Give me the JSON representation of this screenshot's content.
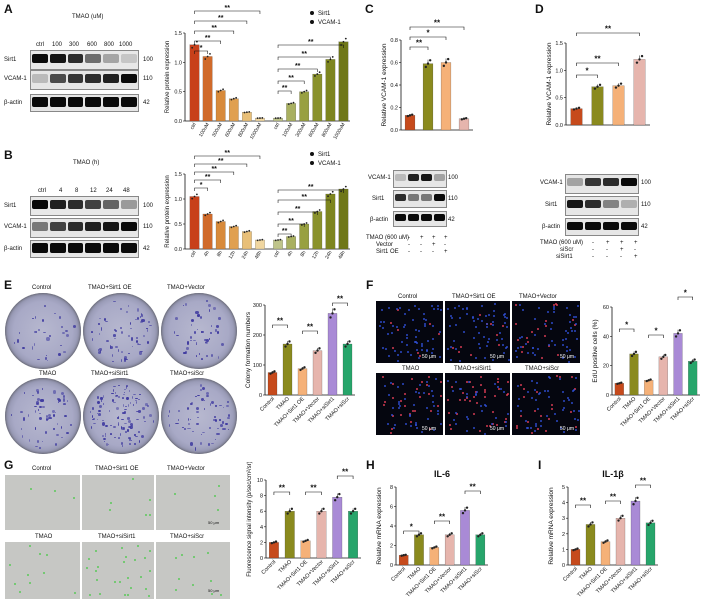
{
  "panels": {
    "A": {
      "label": "A",
      "header": "TMAO (uM)",
      "lanes": [
        "ctrl",
        "100",
        "300",
        "600",
        "800",
        "1000"
      ],
      "rows": [
        {
          "name": "Sirt1",
          "kda": "100"
        },
        {
          "name": "VCAM-1",
          "kda": "110"
        },
        {
          "name": "β-actin",
          "kda": "42"
        }
      ]
    },
    "B": {
      "label": "B",
      "header": "TMAO (h)",
      "lanes": [
        "ctrl",
        "4",
        "8",
        "12",
        "24",
        "48"
      ],
      "rows": [
        {
          "name": "Sirt1",
          "kda": "100"
        },
        {
          "name": "VCAM-1",
          "kda": "110"
        },
        {
          "name": "β-actin",
          "kda": "42"
        }
      ]
    },
    "C": {
      "label": "C",
      "rows": [
        {
          "name": "VCAM-1",
          "kda": "100"
        },
        {
          "name": "Sirt1",
          "kda": "110"
        },
        {
          "name": "β-actin",
          "kda": "42"
        }
      ],
      "conditions": [
        {
          "name": "TMAO (600 uM)",
          "signs": [
            "-",
            "+",
            "+",
            "+"
          ]
        },
        {
          "name": "Vector",
          "signs": [
            "-",
            "-",
            "+",
            "-"
          ]
        },
        {
          "name": "Sirt1  OE",
          "signs": [
            "-",
            "-",
            "-",
            "+"
          ]
        }
      ]
    },
    "D": {
      "label": "D",
      "rows": [
        {
          "name": "VCAM-1",
          "kda": "100"
        },
        {
          "name": "Sirt1",
          "kda": "110"
        },
        {
          "name": "β-actin",
          "kda": "42"
        }
      ],
      "conditions": [
        {
          "name": "TMAO (600 uM)",
          "signs": [
            "-",
            "+",
            "+",
            "+"
          ]
        },
        {
          "name": "siScr",
          "signs": [
            "-",
            "-",
            "+",
            "-"
          ]
        },
        {
          "name": "siSirt1",
          "signs": [
            "-",
            "-",
            "-",
            "+"
          ]
        }
      ]
    },
    "E": {
      "label": "E",
      "image_titles": [
        "Control",
        "TMAO+Sirt1 OE",
        "TMAO+Vector",
        "TMAO",
        "TMAO+siSirt1",
        "TMAO+siScr"
      ]
    },
    "F": {
      "label": "F",
      "image_titles": [
        "Control",
        "TMAO+Sirt1 OE",
        "TMAO+Vector",
        "TMAO",
        "TMAO+siSirt1",
        "TMAO+siScr"
      ],
      "scale": "50 μm"
    },
    "G": {
      "label": "G",
      "image_titles": [
        "Control",
        "TMAO+Sirt1 OE",
        "TMAO+Vector",
        "TMAO",
        "TMAO+siSirt1",
        "TMAO+siScr"
      ],
      "scale": "50 μm"
    },
    "H": {
      "label": "H"
    },
    "I": {
      "label": "I"
    }
  },
  "chart_data": [
    {
      "id": "A-chart",
      "type": "bar",
      "ylabel": "Relative protein expression",
      "ylim": [
        0,
        1.5
      ],
      "yticks": [
        "0.0",
        "0.5",
        "1.0",
        "1.5"
      ],
      "categories": [
        "ctrl",
        "100uM",
        "300uM",
        "600uM",
        "800uM",
        "1000uM"
      ],
      "series": [
        {
          "name": "Sirt1",
          "values": [
            1.3,
            1.1,
            0.52,
            0.38,
            0.15,
            0.05
          ]
        },
        {
          "name": "VCAM-1",
          "values": [
            0.05,
            0.3,
            0.5,
            0.8,
            1.05,
            1.35
          ]
        }
      ],
      "significance": [
        "*",
        "**",
        "**",
        "**",
        "**",
        "**",
        "**",
        "**",
        "**",
        "**"
      ],
      "legend": "top-right"
    },
    {
      "id": "B-chart",
      "type": "bar",
      "ylabel": "Relative protein expression",
      "ylim": [
        0,
        1.5
      ],
      "yticks": [
        "0.0",
        "0.5",
        "1.0",
        "1.5"
      ],
      "categories": [
        "ctrl",
        "4h",
        "8h",
        "12h",
        "24h",
        "48h"
      ],
      "series": [
        {
          "name": "Sirt1",
          "values": [
            1.05,
            0.7,
            0.55,
            0.45,
            0.35,
            0.18
          ]
        },
        {
          "name": "VCAM-1",
          "values": [
            0.18,
            0.25,
            0.5,
            0.75,
            1.1,
            1.2
          ]
        }
      ],
      "significance": [
        "*",
        "**",
        "**",
        "**",
        "**",
        "**",
        "**",
        "**",
        "**",
        "**"
      ],
      "legend": "top-right"
    },
    {
      "id": "C-chart",
      "type": "bar",
      "ylabel": "Relative VCAM-1 expression",
      "ylim": [
        0,
        0.8
      ],
      "yticks": [
        "0.0",
        "0.2",
        "0.4",
        "0.6",
        "0.8"
      ],
      "categories": [
        "",
        "",
        "",
        ""
      ],
      "values": [
        0.13,
        0.59,
        0.6,
        0.1
      ],
      "significance": [
        "**",
        "*",
        "**"
      ]
    },
    {
      "id": "D-chart",
      "type": "bar",
      "ylabel": "Relative VCAM-1 expression",
      "ylim": [
        0,
        1.5
      ],
      "yticks": [
        "0.0",
        "0.5",
        "1.0",
        "1.5"
      ],
      "categories": [
        "",
        "",
        "",
        ""
      ],
      "values": [
        0.3,
        0.7,
        0.72,
        1.2
      ],
      "significance": [
        "*",
        "**",
        "**"
      ]
    },
    {
      "id": "E-chart",
      "type": "bar",
      "ylabel": "Colony formation numbers",
      "ylim": [
        0,
        300
      ],
      "yticks": [
        "0",
        "100",
        "200",
        "300"
      ],
      "categories": [
        "Control",
        "TMAO",
        "TMAO+Sirt1 OE",
        "TMAO+Vector",
        "TMAO+siSirt1",
        "TMAO+siScr"
      ],
      "values": [
        75,
        170,
        88,
        148,
        272,
        170
      ],
      "significance": [
        "**",
        "**",
        "**"
      ]
    },
    {
      "id": "F-chart",
      "type": "bar",
      "ylabel": "EdU positive cells (%)",
      "ylim": [
        0,
        60
      ],
      "yticks": [
        "0",
        "20",
        "40",
        "60"
      ],
      "categories": [
        "Control",
        "TMAO",
        "TMAO+Sirt1 OE",
        "TMAO+Vector",
        "TMAO+siSirt1",
        "TMAO+siScr"
      ],
      "values": [
        8,
        28,
        10,
        26,
        42,
        23
      ],
      "significance": [
        "*",
        "*",
        "*"
      ]
    },
    {
      "id": "G-chart",
      "type": "bar",
      "ylabel": "Fluorescence signal intensity (p/sec/cm²/sr)",
      "ylim": [
        0,
        10
      ],
      "yticks": [
        "0",
        "2",
        "4",
        "6",
        "8",
        "10"
      ],
      "categories": [
        "Control",
        "TMAO",
        "TMAO+Sirt1 OE",
        "TMAO+Vector",
        "TMAO+siSirt1",
        "TMAO+siScr"
      ],
      "values": [
        2.0,
        6.0,
        2.2,
        6.0,
        7.8,
        6.0
      ],
      "significance": [
        "**",
        "**",
        "**"
      ]
    },
    {
      "id": "H-chart",
      "type": "bar",
      "title": "IL-6",
      "ylabel": "Relative mRNA expression",
      "ylim": [
        0,
        8
      ],
      "yticks": [
        "0",
        "2",
        "4",
        "6",
        "8"
      ],
      "categories": [
        "Control",
        "TMAO",
        "TMAO+Sirt1 OE",
        "TMAO+Vector",
        "TMAO+siSirt1",
        "TMAO+siScr"
      ],
      "values": [
        1.0,
        3.1,
        1.8,
        3.1,
        5.6,
        3.1
      ],
      "significance": [
        "*",
        "**",
        "**"
      ]
    },
    {
      "id": "I-chart",
      "type": "bar",
      "title": "IL-1β",
      "ylabel": "Relative mRNA expression",
      "ylim": [
        0,
        5
      ],
      "yticks": [
        "0",
        "1",
        "2",
        "3",
        "4",
        "5"
      ],
      "categories": [
        "Control",
        "TMAO",
        "TMAO+Sirt1 OE",
        "TMAO+Vector",
        "TMAO+siSirt1",
        "TMAO+siScr"
      ],
      "values": [
        1.0,
        2.6,
        1.5,
        3.0,
        4.1,
        2.7
      ],
      "significance": [
        "**",
        "**",
        "**"
      ]
    }
  ],
  "colors": {
    "Control": "#c64a1c",
    "TMAO": "#8a8a1e",
    "TMAO+Sirt1 OE": "#f5b178",
    "TMAO+Vector": "#e6b5ad",
    "TMAO+siSirt1": "#a98ad6",
    "TMAO+siScr": "#27a56b",
    "sirt1_gradient": [
      "#c8401a",
      "#d06a2a",
      "#d88a3a",
      "#e0a050",
      "#e8bf78",
      "#f0d6a0"
    ],
    "vcam_gradient": [
      "#bfc48a",
      "#a9b060",
      "#98a040",
      "#8a922c",
      "#7d851f",
      "#6f7718"
    ],
    "C_bars": [
      "#c64a1c",
      "#8a8a1e",
      "#f5b178",
      "#e6b5ad"
    ],
    "D_bars": [
      "#c64a1c",
      "#8a8a1e",
      "#f5b178",
      "#e6b5ad"
    ]
  }
}
